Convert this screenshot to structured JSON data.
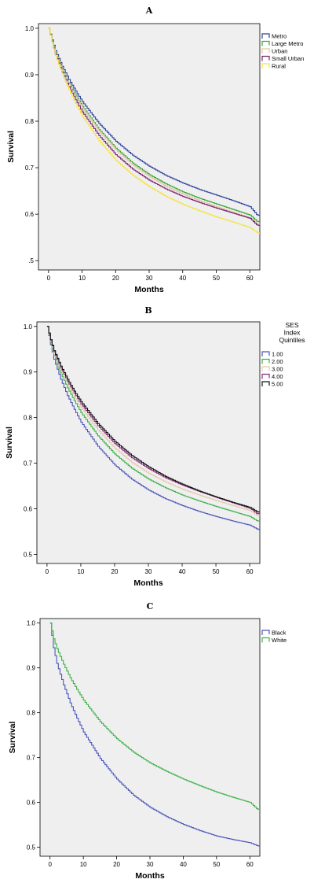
{
  "chart_data": [
    {
      "type": "line",
      "step": true,
      "panel_label": "A",
      "xlabel": "Months",
      "ylabel": "Survival",
      "xlim": [
        -3,
        63
      ],
      "ylim": [
        0.48,
        1.01
      ],
      "x_ticks": [
        0,
        10,
        20,
        30,
        40,
        50,
        60
      ],
      "y_ticks": [
        0.5,
        0.6,
        0.7,
        0.8,
        0.9,
        1.0
      ],
      "x_tick_labels": [
        "0",
        "10",
        "20",
        "30",
        "40",
        "50",
        "60"
      ],
      "y_tick_labels": [
        ".5",
        "0.6",
        "0.7",
        "0.8",
        "0.9",
        "1.0"
      ],
      "legend_position": "top-right",
      "legend_title": "",
      "background": "#efefef",
      "series": [
        {
          "name": "Metro",
          "color": "#2d3f9b",
          "points": [
            [
              0,
              1.0
            ],
            [
              1,
              0.975
            ],
            [
              2,
              0.952
            ],
            [
              4,
              0.918
            ],
            [
              6,
              0.89
            ],
            [
              8,
              0.865
            ],
            [
              10,
              0.842
            ],
            [
              15,
              0.795
            ],
            [
              20,
              0.757
            ],
            [
              25,
              0.727
            ],
            [
              30,
              0.703
            ],
            [
              35,
              0.683
            ],
            [
              40,
              0.667
            ],
            [
              45,
              0.653
            ],
            [
              50,
              0.641
            ],
            [
              55,
              0.629
            ],
            [
              60,
              0.616
            ],
            [
              62,
              0.599
            ],
            [
              63,
              0.596
            ]
          ]
        },
        {
          "name": "Large Metro",
          "color": "#35a835",
          "points": [
            [
              0,
              1.0
            ],
            [
              1,
              0.973
            ],
            [
              2,
              0.948
            ],
            [
              4,
              0.912
            ],
            [
              6,
              0.882
            ],
            [
              8,
              0.856
            ],
            [
              10,
              0.832
            ],
            [
              15,
              0.782
            ],
            [
              20,
              0.742
            ],
            [
              25,
              0.71
            ],
            [
              30,
              0.685
            ],
            [
              35,
              0.665
            ],
            [
              40,
              0.648
            ],
            [
              45,
              0.634
            ],
            [
              50,
              0.622
            ],
            [
              55,
              0.61
            ],
            [
              60,
              0.598
            ],
            [
              62,
              0.585
            ],
            [
              63,
              0.583
            ]
          ]
        },
        {
          "name": "Urban",
          "color": "#e0c4a4",
          "points": [
            [
              0,
              1.0
            ],
            [
              1,
              0.972
            ],
            [
              2,
              0.946
            ],
            [
              4,
              0.91
            ],
            [
              6,
              0.879
            ],
            [
              8,
              0.852
            ],
            [
              10,
              0.828
            ],
            [
              15,
              0.778
            ],
            [
              20,
              0.738
            ],
            [
              25,
              0.706
            ],
            [
              30,
              0.681
            ],
            [
              35,
              0.66
            ],
            [
              40,
              0.643
            ],
            [
              45,
              0.629
            ],
            [
              50,
              0.616
            ],
            [
              55,
              0.604
            ],
            [
              60,
              0.592
            ],
            [
              62,
              0.58
            ],
            [
              63,
              0.578
            ]
          ]
        },
        {
          "name": "Small Urban",
          "color": "#7a1f6e",
          "points": [
            [
              0,
              1.0
            ],
            [
              1,
              0.971
            ],
            [
              2,
              0.944
            ],
            [
              4,
              0.906
            ],
            [
              6,
              0.874
            ],
            [
              8,
              0.846
            ],
            [
              10,
              0.82
            ],
            [
              15,
              0.769
            ],
            [
              20,
              0.728
            ],
            [
              25,
              0.697
            ],
            [
              30,
              0.673
            ],
            [
              35,
              0.654
            ],
            [
              40,
              0.638
            ],
            [
              45,
              0.625
            ],
            [
              50,
              0.613
            ],
            [
              55,
              0.602
            ],
            [
              60,
              0.591
            ],
            [
              62,
              0.577
            ],
            [
              63,
              0.575
            ]
          ]
        },
        {
          "name": "Rural",
          "color": "#f4e33c",
          "points": [
            [
              0,
              1.0
            ],
            [
              1,
              0.97
            ],
            [
              2,
              0.942
            ],
            [
              4,
              0.902
            ],
            [
              6,
              0.868
            ],
            [
              8,
              0.838
            ],
            [
              10,
              0.811
            ],
            [
              15,
              0.758
            ],
            [
              20,
              0.716
            ],
            [
              25,
              0.684
            ],
            [
              30,
              0.659
            ],
            [
              35,
              0.638
            ],
            [
              40,
              0.621
            ],
            [
              45,
              0.607
            ],
            [
              50,
              0.594
            ],
            [
              55,
              0.583
            ],
            [
              60,
              0.571
            ],
            [
              62,
              0.561
            ],
            [
              63,
              0.558
            ]
          ]
        }
      ]
    },
    {
      "type": "line",
      "step": true,
      "panel_label": "B",
      "xlabel": "Months",
      "ylabel": "Survival",
      "xlim": [
        -3,
        63
      ],
      "ylim": [
        0.48,
        1.01
      ],
      "x_ticks": [
        0,
        10,
        20,
        30,
        40,
        50,
        60
      ],
      "y_ticks": [
        0.5,
        0.6,
        0.7,
        0.8,
        0.9,
        1.0
      ],
      "x_tick_labels": [
        "0",
        "10",
        "20",
        "30",
        "40",
        "50",
        "60"
      ],
      "y_tick_labels": [
        "0.5",
        "0.6",
        "0.7",
        "0.8",
        "0.9",
        "1.0"
      ],
      "legend_position": "top-right",
      "legend_title": "SES\nIndex\nQuintiles",
      "background": "#efefef",
      "series": [
        {
          "name": "1.00",
          "color": "#4a57b8",
          "points": [
            [
              0,
              1.0
            ],
            [
              1,
              0.96
            ],
            [
              2,
              0.928
            ],
            [
              4,
              0.884
            ],
            [
              6,
              0.848
            ],
            [
              8,
              0.818
            ],
            [
              10,
              0.79
            ],
            [
              15,
              0.737
            ],
            [
              20,
              0.696
            ],
            [
              25,
              0.665
            ],
            [
              30,
              0.641
            ],
            [
              35,
              0.622
            ],
            [
              40,
              0.607
            ],
            [
              45,
              0.594
            ],
            [
              50,
              0.583
            ],
            [
              55,
              0.573
            ],
            [
              60,
              0.564
            ],
            [
              62,
              0.556
            ],
            [
              63,
              0.553
            ]
          ]
        },
        {
          "name": "2.00",
          "color": "#3fb14a",
          "points": [
            [
              0,
              1.0
            ],
            [
              1,
              0.965
            ],
            [
              2,
              0.937
            ],
            [
              4,
              0.898
            ],
            [
              6,
              0.865
            ],
            [
              8,
              0.837
            ],
            [
              10,
              0.811
            ],
            [
              15,
              0.76
            ],
            [
              20,
              0.72
            ],
            [
              25,
              0.689
            ],
            [
              30,
              0.665
            ],
            [
              35,
              0.646
            ],
            [
              40,
              0.63
            ],
            [
              45,
              0.617
            ],
            [
              50,
              0.605
            ],
            [
              55,
              0.594
            ],
            [
              60,
              0.583
            ],
            [
              62,
              0.574
            ],
            [
              63,
              0.572
            ]
          ]
        },
        {
          "name": "3.00",
          "color": "#e4c9a8",
          "points": [
            [
              0,
              1.0
            ],
            [
              1,
              0.968
            ],
            [
              2,
              0.942
            ],
            [
              4,
              0.905
            ],
            [
              6,
              0.874
            ],
            [
              8,
              0.847
            ],
            [
              10,
              0.822
            ],
            [
              15,
              0.773
            ],
            [
              20,
              0.733
            ],
            [
              25,
              0.702
            ],
            [
              30,
              0.678
            ],
            [
              35,
              0.659
            ],
            [
              40,
              0.643
            ],
            [
              45,
              0.63
            ],
            [
              50,
              0.618
            ],
            [
              55,
              0.607
            ],
            [
              60,
              0.596
            ],
            [
              62,
              0.586
            ],
            [
              63,
              0.584
            ]
          ]
        },
        {
          "name": "4.00",
          "color": "#8a2a7e",
          "points": [
            [
              0,
              1.0
            ],
            [
              1,
              0.97
            ],
            [
              2,
              0.945
            ],
            [
              4,
              0.91
            ],
            [
              6,
              0.88
            ],
            [
              8,
              0.854
            ],
            [
              10,
              0.83
            ],
            [
              15,
              0.782
            ],
            [
              20,
              0.743
            ],
            [
              25,
              0.712
            ],
            [
              30,
              0.688
            ],
            [
              35,
              0.668
            ],
            [
              40,
              0.652
            ],
            [
              45,
              0.638
            ],
            [
              50,
              0.625
            ],
            [
              55,
              0.613
            ],
            [
              60,
              0.601
            ],
            [
              62,
              0.59
            ],
            [
              63,
              0.588
            ]
          ]
        },
        {
          "name": "5.00",
          "color": "#111111",
          "points": [
            [
              0,
              1.0
            ],
            [
              1,
              0.971
            ],
            [
              2,
              0.947
            ],
            [
              4,
              0.913
            ],
            [
              6,
              0.884
            ],
            [
              8,
              0.858
            ],
            [
              10,
              0.835
            ],
            [
              15,
              0.787
            ],
            [
              20,
              0.748
            ],
            [
              25,
              0.717
            ],
            [
              30,
              0.692
            ],
            [
              35,
              0.671
            ],
            [
              40,
              0.654
            ],
            [
              45,
              0.639
            ],
            [
              50,
              0.626
            ],
            [
              55,
              0.614
            ],
            [
              60,
              0.603
            ],
            [
              62,
              0.594
            ],
            [
              63,
              0.592
            ]
          ]
        }
      ]
    },
    {
      "type": "line",
      "step": true,
      "panel_label": "C",
      "xlabel": "Months",
      "ylabel": "Survival",
      "xlim": [
        -3,
        63
      ],
      "ylim": [
        0.48,
        1.01
      ],
      "x_ticks": [
        0,
        10,
        20,
        30,
        40,
        50,
        60
      ],
      "y_ticks": [
        0.5,
        0.6,
        0.7,
        0.8,
        0.9,
        1.0
      ],
      "x_tick_labels": [
        "0",
        "10",
        "20",
        "30",
        "40",
        "50",
        "60"
      ],
      "y_tick_labels": [
        "0.5",
        "0.6",
        "0.7",
        "0.8",
        "0.9",
        "1.0"
      ],
      "legend_position": "top-right",
      "legend_title": "",
      "background": "#efefef",
      "series": [
        {
          "name": "Black",
          "color": "#4a57b8",
          "points": [
            [
              0,
              1.0
            ],
            [
              1,
              0.945
            ],
            [
              2,
              0.91
            ],
            [
              4,
              0.862
            ],
            [
              6,
              0.822
            ],
            [
              8,
              0.788
            ],
            [
              10,
              0.757
            ],
            [
              15,
              0.698
            ],
            [
              20,
              0.652
            ],
            [
              25,
              0.616
            ],
            [
              30,
              0.589
            ],
            [
              35,
              0.568
            ],
            [
              40,
              0.551
            ],
            [
              45,
              0.537
            ],
            [
              50,
              0.525
            ],
            [
              55,
              0.517
            ],
            [
              60,
              0.51
            ],
            [
              62,
              0.504
            ],
            [
              63,
              0.502
            ]
          ]
        },
        {
          "name": "White",
          "color": "#3fb14a",
          "points": [
            [
              0,
              1.0
            ],
            [
              1,
              0.965
            ],
            [
              2,
              0.943
            ],
            [
              4,
              0.908
            ],
            [
              6,
              0.878
            ],
            [
              8,
              0.852
            ],
            [
              10,
              0.828
            ],
            [
              15,
              0.78
            ],
            [
              20,
              0.742
            ],
            [
              25,
              0.712
            ],
            [
              30,
              0.688
            ],
            [
              35,
              0.669
            ],
            [
              40,
              0.652
            ],
            [
              45,
              0.637
            ],
            [
              50,
              0.623
            ],
            [
              55,
              0.611
            ],
            [
              60,
              0.6
            ],
            [
              62,
              0.586
            ],
            [
              63,
              0.582
            ]
          ]
        }
      ]
    }
  ]
}
